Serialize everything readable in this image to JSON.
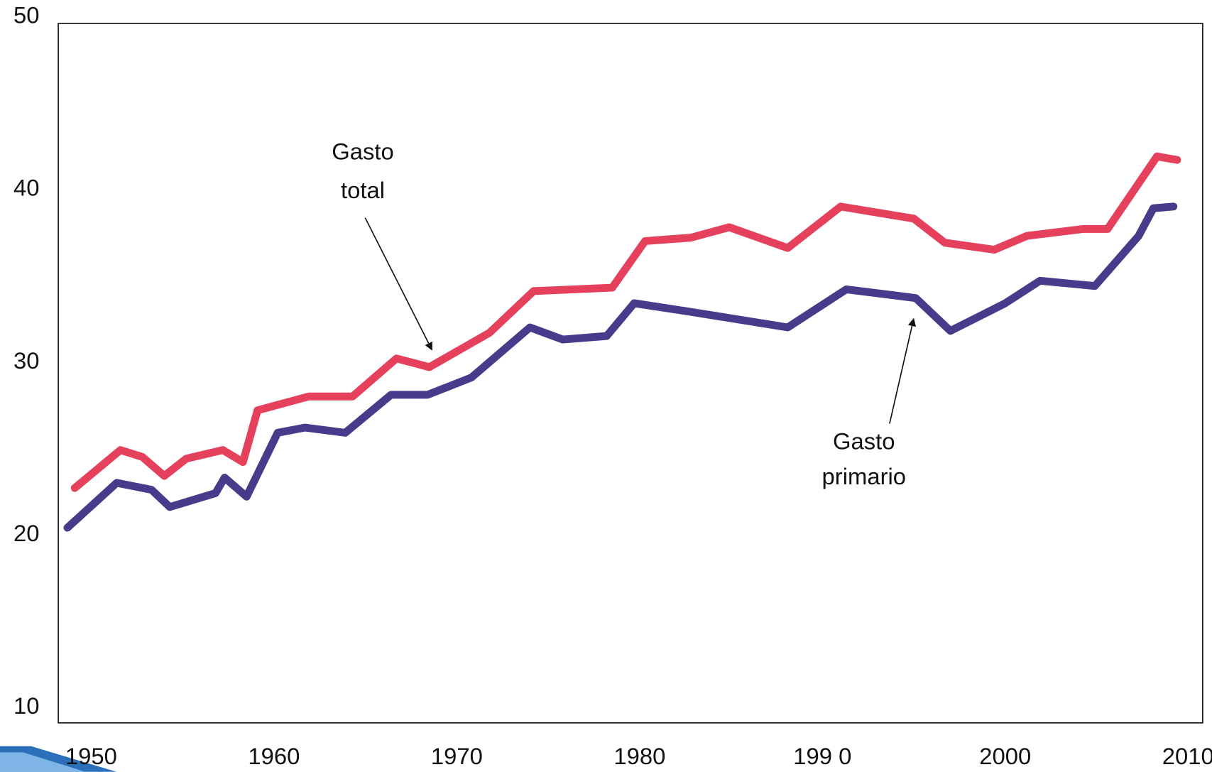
{
  "chart_data": {
    "type": "line",
    "xlim": [
      1948.2,
      2010.8
    ],
    "xticks": [
      1950,
      1960,
      1970,
      1980,
      {
        "value": 1990,
        "label": "199 0"
      },
      2000,
      2010
    ],
    "ylim": [
      9.3,
      49.8
    ],
    "yticks": [
      10,
      20,
      30,
      40,
      50
    ],
    "series": [
      {
        "name": "Gasto total",
        "color": "#e5405c",
        "x": [
          1949.1,
          1951.6,
          1952.8,
          1954.0,
          1955.2,
          1957.2,
          1958.3,
          1959.1,
          1961.9,
          1964.3,
          1966.7,
          1968.5,
          1971.8,
          1974.2,
          1978.5,
          1980.3,
          1982.8,
          1984.9,
          1988.1,
          1991.0,
          1995.0,
          1996.7,
          1999.4,
          2001.2,
          2004.3,
          2005.6,
          2008.3,
          2009.4
        ],
        "values": [
          22.9,
          25.1,
          24.7,
          23.6,
          24.6,
          25.1,
          24.4,
          27.4,
          28.2,
          28.2,
          30.4,
          29.9,
          31.9,
          34.3,
          34.5,
          37.2,
          37.4,
          38.0,
          36.8,
          39.2,
          38.5,
          37.1,
          36.7,
          37.5,
          37.9,
          37.9,
          42.1,
          41.9
        ]
      },
      {
        "name": "Gasto primario",
        "color": "#4a3a8c",
        "x": [
          1948.7,
          1951.4,
          1953.3,
          1954.3,
          1956.8,
          1957.3,
          1958.5,
          1960.2,
          1961.7,
          1963.9,
          1966.4,
          1968.4,
          1970.8,
          1974.0,
          1975.8,
          1978.2,
          1979.7,
          1982.8,
          1988.1,
          1991.3,
          1995.1,
          1997.0,
          2000.0,
          2001.9,
          2004.9,
          2007.3,
          2008.1,
          2009.2
        ],
        "values": [
          20.6,
          23.2,
          22.8,
          21.8,
          22.6,
          23.5,
          22.4,
          26.1,
          26.4,
          26.1,
          28.3,
          28.3,
          29.3,
          32.2,
          31.5,
          31.7,
          33.6,
          33.1,
          32.2,
          34.4,
          33.9,
          32.0,
          33.6,
          34.9,
          34.6,
          37.5,
          39.1,
          39.2
        ]
      }
    ],
    "annotations": [
      {
        "lines": [
          "Gasto",
          "total"
        ]
      },
      {
        "lines": [
          "Gasto",
          "primario"
        ]
      }
    ]
  }
}
